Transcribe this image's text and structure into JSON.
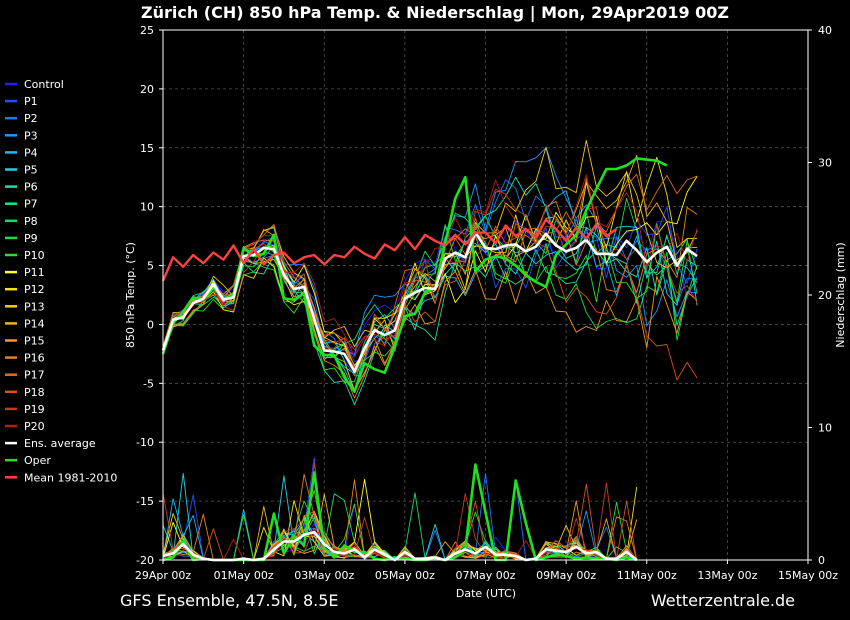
{
  "header": {
    "title": "Zürich  (CH)  850 hPa Temp. & Niederschlag | Mon, 29Apr2019 00Z"
  },
  "footer": {
    "left": "GFS Ensemble, 47.5N, 8.5E",
    "right": "Wetterzentrale.de"
  },
  "chart_data": {
    "type": "line",
    "title": "Zürich  (CH)  850 hPa Temp. & Niederschlag | Mon, 29Apr2019 00Z",
    "xlabel": "Date (UTC)",
    "ylabel_left": "850 hPa Temp. (°C)",
    "ylabel_right": "Niederschlag (mm)",
    "ylim_left": [
      -20,
      25
    ],
    "ylim_right": [
      0,
      40
    ],
    "yticks_left": [
      "25",
      "20",
      "15",
      "10",
      "5",
      "0",
      "-5",
      "-10",
      "-15",
      "-20"
    ],
    "yticks_right": [
      "40",
      "30",
      "20",
      "10",
      "0"
    ],
    "xticks": [
      "29Apr 00z",
      "01May 00z",
      "03May 00z",
      "05May 00z",
      "07May 00z",
      "09May 00z",
      "11May 00z",
      "13May 00z",
      "15May 00z"
    ],
    "grid": true,
    "legend_position": "left",
    "colors": {
      "Control": "#2a1aff",
      "P1": "#1e50ff",
      "P2": "#1a78ff",
      "P3": "#1a9aff",
      "P4": "#1ab8f0",
      "P5": "#1ad2e0",
      "P6": "#1ae0b0",
      "P7": "#1ae090",
      "P8": "#1ad860",
      "P9": "#1ae040",
      "P10": "#30e020",
      "P11": "#ffff20",
      "P12": "#f0e020",
      "P13": "#f0c820",
      "P14": "#f0b020",
      "P15": "#f09a20",
      "P16": "#e88020",
      "P17": "#e06a20",
      "P18": "#d85020",
      "P19": "#c83820",
      "P20": "#b02010",
      "Ens. average": "#ffffff",
      "Oper": "#20e020",
      "Mean 1981-2010": "#ff4040"
    },
    "legend": [
      "Control",
      "P1",
      "P2",
      "P3",
      "P4",
      "P5",
      "P6",
      "P7",
      "P8",
      "P9",
      "P10",
      "P11",
      "P12",
      "P13",
      "P14",
      "P15",
      "P16",
      "P17",
      "P18",
      "P19",
      "P20",
      "Ens. average",
      "Oper",
      "Mean 1981-2010"
    ],
    "x_step_hours": 6,
    "temperature": {
      "Ens. average": [
        -2.2,
        0.4,
        0.6,
        1.8,
        2.2,
        3.4,
        2.1,
        2.3,
        5.8,
        5.9,
        6.5,
        6.4,
        4.2,
        3,
        3.2,
        0.5,
        -2.2,
        -2.3,
        -2.5,
        -4,
        -2,
        -0.5,
        -0.9,
        -0.5,
        2.2,
        2.7,
        3.1,
        3,
        5.6,
        6.1,
        5.7,
        7.8,
        6.5,
        6.4,
        6.7,
        6.8,
        6.2,
        6.6,
        7.7,
        6.7,
        6.2,
        6.5,
        7.2,
        6,
        6,
        5.9,
        7.1,
        6.3,
        5.3,
        6.1,
        6.6,
        5,
        6.4,
        5.8
      ],
      "Oper": [
        -2.5,
        0.1,
        1.1,
        2.3,
        2.1,
        3.1,
        2.2,
        2.5,
        6.5,
        5.8,
        6,
        7.6,
        2.2,
        2.1,
        2.6,
        -1.8,
        -2.6,
        -2.6,
        -4.5,
        -5.7,
        -3.3,
        -3.8,
        -4.1,
        -1.9,
        0.7,
        0.9,
        2.7,
        3.1,
        6.9,
        10.7,
        12.5,
        4.5,
        5.5,
        5.8,
        5.6,
        5,
        4.2,
        3.6,
        3.2,
        5.9,
        6.8,
        7.6,
        9.7,
        11.5,
        13.2,
        13.2,
        13.5,
        14.1,
        14,
        13.9,
        13.5
      ],
      "Mean 1981-2010": [
        3.7,
        5.7,
        4.9,
        5.9,
        5.2,
        6.1,
        5.5,
        6.7,
        5.2,
        6.4,
        5.1,
        5.9,
        6.1,
        5.2,
        5.7,
        5.9,
        5.1,
        5.9,
        5.7,
        6.6,
        6,
        5.6,
        6.8,
        6.3,
        7.4,
        6.4,
        7.6,
        7.1,
        6.7,
        7.6,
        6.8,
        7.8,
        7.8,
        6.9,
        8.4,
        7.5,
        8.1,
        7.4,
        8.9,
        8.1,
        7.1,
        8.2,
        7.3,
        8.5,
        7.5,
        8.1
      ]
    },
    "precipitation": {
      "Ens. average": [
        0.3,
        0.5,
        1.2,
        0.4,
        0.1,
        0,
        0,
        0,
        0.1,
        0,
        0.1,
        0.8,
        1.4,
        1.4,
        1.9,
        2.1,
        1.2,
        0.6,
        0.5,
        0.8,
        0.2,
        0.8,
        0.4,
        0,
        0.6,
        0.1,
        0.1,
        0.2,
        0,
        0.5,
        0.8,
        0.5,
        1,
        0.4,
        0.4,
        0.3,
        0,
        0.1,
        0.8,
        0.7,
        0.6,
        1,
        0.5,
        0.6,
        0.1,
        0.1,
        0.6,
        0
      ],
      "Oper": [
        0,
        0.2,
        1.4,
        0,
        0.1,
        0,
        0,
        0,
        0,
        0,
        0,
        3.5,
        0.5,
        1.8,
        1.1,
        6.6,
        0.9,
        0.2,
        1.1,
        0.6,
        0.6,
        0.1,
        0,
        0.2,
        0.1,
        0,
        0,
        0.1,
        0,
        0.2,
        0.8,
        7.2,
        3.6,
        0,
        0,
        6,
        2.8,
        0,
        0.2,
        0.4,
        0.3,
        0.1,
        0.2,
        0.1,
        0.1,
        0,
        0.2,
        0
      ]
    }
  }
}
